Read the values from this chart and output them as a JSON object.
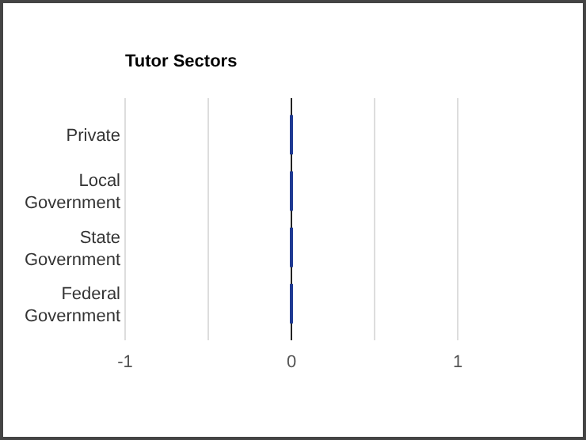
{
  "chart_data": {
    "type": "bar",
    "orientation": "horizontal",
    "title": "Tutor Sectors",
    "categories": [
      "Private",
      "Local\nGovernment",
      "State\nGovernment",
      "Federal\nGovernment"
    ],
    "values": [
      0,
      0,
      0,
      0
    ],
    "color": "#1f3a93",
    "xlim": [
      -1,
      1
    ],
    "xticks": [
      -1,
      {
        "value": -0.5,
        "label": null
      },
      0,
      {
        "value": 0.5,
        "label": null
      },
      1
    ],
    "grid": "x"
  }
}
